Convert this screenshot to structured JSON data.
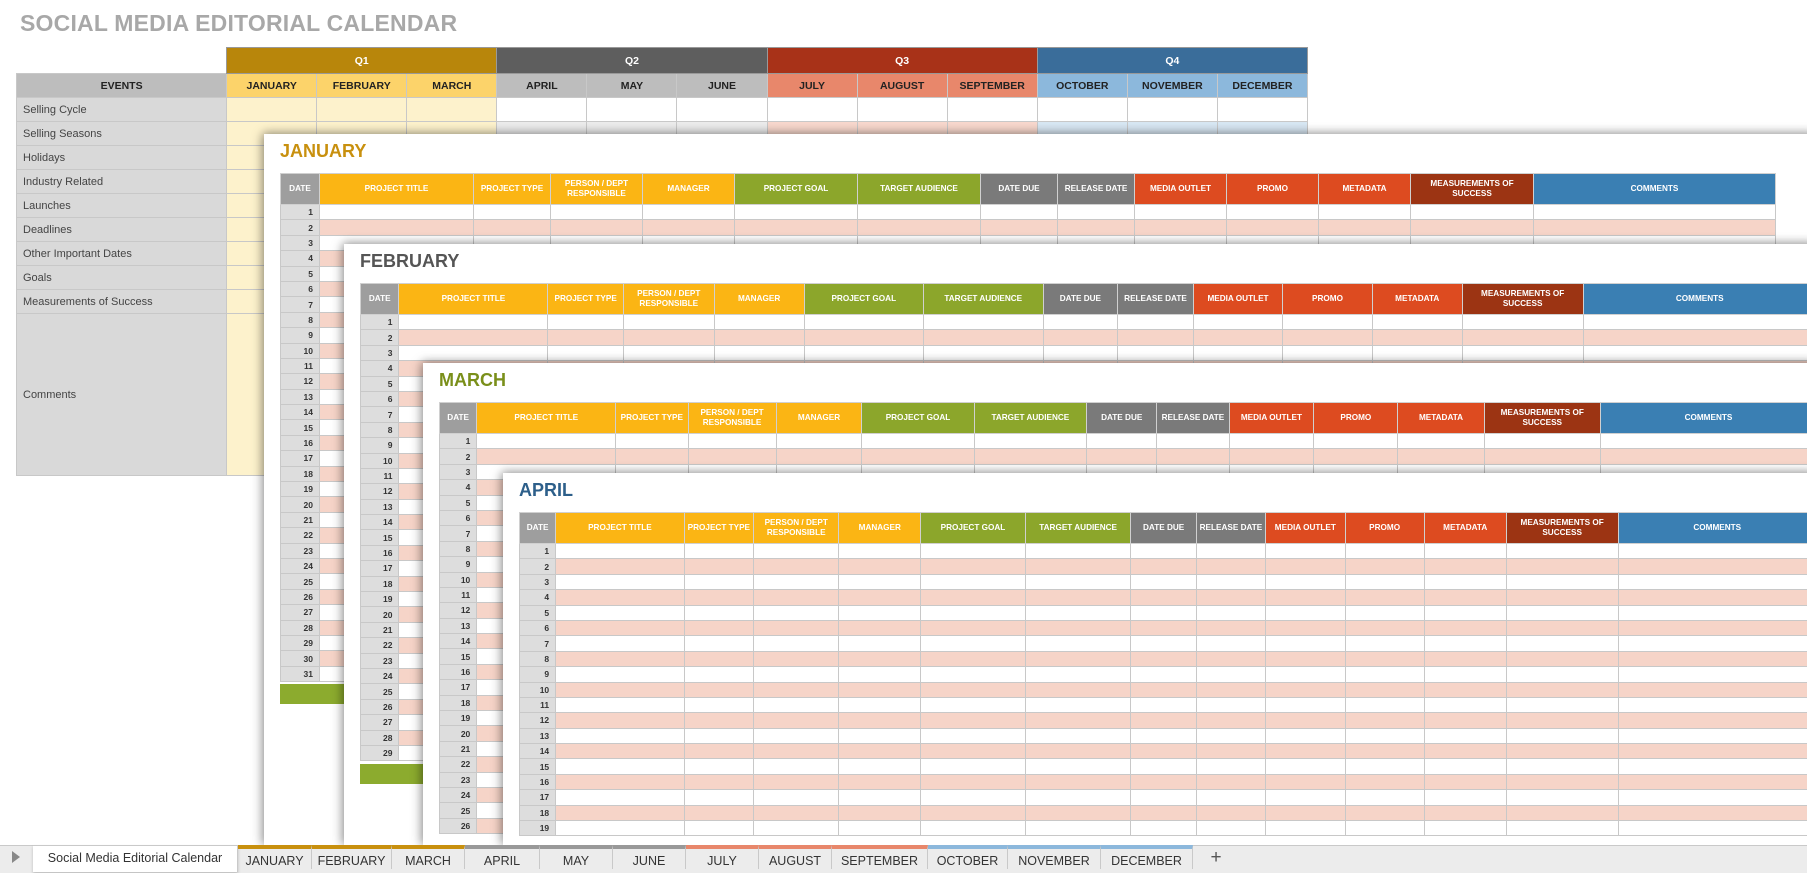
{
  "title": "SOCIAL MEDIA EDITORIAL CALENDAR",
  "quarters": [
    {
      "label": "Q1",
      "color": "#b8860b",
      "month_color": "#fcd36a",
      "cell_color": "#fdf2cc"
    },
    {
      "label": "Q2",
      "color": "#5e5e5e",
      "month_color": "#bdbdbd",
      "cell_color": "#ececec"
    },
    {
      "label": "Q3",
      "color": "#a83218",
      "month_color": "#e8876b",
      "cell_color": "#f8d8cd"
    },
    {
      "label": "Q4",
      "color": "#3a6d9a",
      "month_color": "#8cb8dc",
      "cell_color": "#d8e7f3"
    }
  ],
  "events_header": "EVENTS",
  "months": [
    "JANUARY",
    "FEBRUARY",
    "MARCH",
    "APRIL",
    "MAY",
    "JUNE",
    "JULY",
    "AUGUST",
    "SEPTEMBER",
    "OCTOBER",
    "NOVEMBER",
    "DECEMBER"
  ],
  "events": [
    "Selling Cycle",
    "Selling Seasons",
    "Holidays",
    "Industry Related",
    "Launches",
    "Deadlines",
    "Other Important Dates",
    "Goals",
    "Measurements of Success"
  ],
  "comments_label": "Comments",
  "sheet_columns": [
    {
      "label": "DATE",
      "color": "#9e9e9e"
    },
    {
      "label": "PROJECT TITLE",
      "color": "#fbb514"
    },
    {
      "label": "PROJECT TYPE",
      "color": "#fbb514"
    },
    {
      "label": "PERSON / DEPT RESPONSIBLE",
      "color": "#fbb514"
    },
    {
      "label": "MANAGER",
      "color": "#fbb514"
    },
    {
      "label": "PROJECT GOAL",
      "color": "#8ca62b"
    },
    {
      "label": "TARGET AUDIENCE",
      "color": "#8ca62b"
    },
    {
      "label": "DATE DUE",
      "color": "#7a7a7a"
    },
    {
      "label": "RELEASE DATE",
      "color": "#7a7a7a"
    },
    {
      "label": "MEDIA OUTLET",
      "color": "#dd4b20"
    },
    {
      "label": "PROMO",
      "color": "#dd4b20"
    },
    {
      "label": "METADATA",
      "color": "#dd4b20"
    },
    {
      "label": "MEASUREMENTS OF SUCCESS",
      "color": "#9c3413"
    },
    {
      "label": "COMMENTS",
      "color": "#3a7fb3"
    }
  ],
  "sheets": [
    {
      "name": "JANUARY",
      "title_color": "#c8900e",
      "days": 31,
      "show_days": 31
    },
    {
      "name": "FEBRUARY",
      "title_color": "#555555",
      "days": 29,
      "show_days": 29
    },
    {
      "name": "MARCH",
      "title_color": "#7a8f1a",
      "days": 31,
      "show_days": 26
    },
    {
      "name": "APRIL",
      "title_color": "#2d5f8a",
      "days": 30,
      "show_days": 19
    }
  ],
  "tabs": [
    "Social Media Editorial Calendar",
    "JANUARY",
    "FEBRUARY",
    "MARCH",
    "APRIL",
    "MAY",
    "JUNE",
    "JULY",
    "AUGUST",
    "SEPTEMBER",
    "OCTOBER",
    "NOVEMBER",
    "DECEMBER"
  ],
  "tab_colors": [
    "#c8900e",
    "#c8900e",
    "#c8900e",
    "#c8900e",
    "#999999",
    "#999999",
    "#999999",
    "#e8876b",
    "#e8876b",
    "#e8876b",
    "#8cb8dc",
    "#8cb8dc",
    "#8cb8dc"
  ],
  "active_tab": 0,
  "add_tab_symbol": "+"
}
